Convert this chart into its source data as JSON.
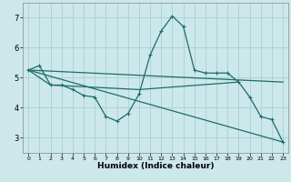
{
  "title": "",
  "xlabel": "Humidex (Indice chaleur)",
  "ylabel": "",
  "xlim": [
    -0.5,
    23.5
  ],
  "ylim": [
    2.5,
    7.5
  ],
  "yticks": [
    3,
    4,
    5,
    6,
    7
  ],
  "xticks": [
    0,
    1,
    2,
    3,
    4,
    5,
    6,
    7,
    8,
    9,
    10,
    11,
    12,
    13,
    14,
    15,
    16,
    17,
    18,
    19,
    20,
    21,
    22,
    23
  ],
  "bg_color": "#cce8ea",
  "grid_color": "#aacfd2",
  "line_color": "#1e6b6b",
  "main_line": {
    "x": [
      0,
      1,
      2,
      3,
      4,
      5,
      6,
      7,
      8,
      9,
      10,
      11,
      12,
      13,
      14,
      15,
      16,
      17,
      18,
      19,
      20,
      21,
      22,
      23
    ],
    "y": [
      5.25,
      5.4,
      4.75,
      4.75,
      4.6,
      4.4,
      4.35,
      3.7,
      3.55,
      3.8,
      4.45,
      5.75,
      6.55,
      7.05,
      6.7,
      5.25,
      5.15,
      5.15,
      5.15,
      4.85,
      4.35,
      3.7,
      3.6,
      2.85
    ]
  },
  "trend_line1": {
    "x": [
      0,
      23
    ],
    "y": [
      5.25,
      4.85
    ]
  },
  "trend_line2": {
    "x": [
      0,
      23
    ],
    "y": [
      5.25,
      2.85
    ]
  },
  "trend_line3": {
    "x": [
      0,
      2,
      10,
      19
    ],
    "y": [
      5.25,
      4.75,
      4.6,
      4.85
    ]
  },
  "line_width": 0.9,
  "marker": "+",
  "marker_size": 3.5,
  "marker_lw": 0.8
}
